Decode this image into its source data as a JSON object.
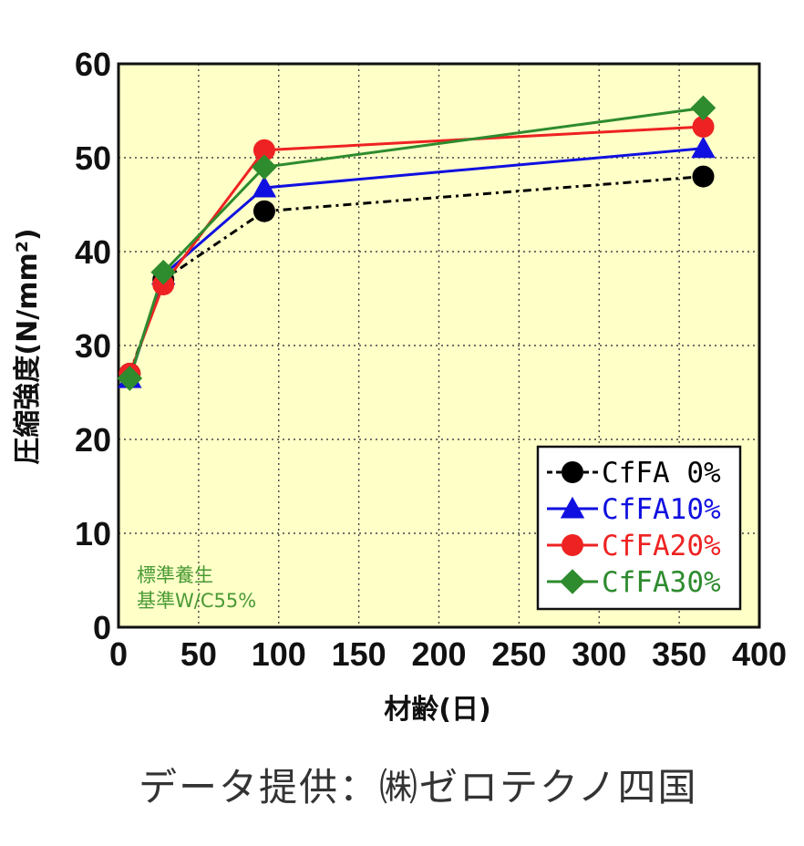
{
  "chart_data": {
    "type": "line",
    "xlabel": "材齢(日)",
    "ylabel": "圧縮強度(N/mm²)",
    "xlim": [
      0,
      400
    ],
    "ylim": [
      0,
      60
    ],
    "xticks": [
      0,
      50,
      100,
      150,
      200,
      250,
      300,
      350,
      400
    ],
    "yticks": [
      0,
      10,
      20,
      30,
      40,
      50,
      60
    ],
    "grid": true,
    "legend_position": "bottom-right",
    "annotations": [
      "標準養生",
      "基準W/C55%"
    ],
    "series": [
      {
        "name": "CfFA 0%",
        "x": [
          7,
          28,
          91,
          365
        ],
        "y": [
          27.0,
          37.0,
          44.3,
          48.0
        ],
        "color": "#000000",
        "marker": "circle",
        "line": "dashed"
      },
      {
        "name": "CfFA10%",
        "x": [
          7,
          28,
          91,
          365
        ],
        "y": [
          26.5,
          37.5,
          46.8,
          51.0
        ],
        "color": "#1010e0",
        "marker": "triangle",
        "line": "solid"
      },
      {
        "name": "CfFA20%",
        "x": [
          7,
          28,
          91,
          365
        ],
        "y": [
          27.0,
          36.5,
          50.8,
          53.3
        ],
        "color": "#ee2222",
        "marker": "circle",
        "line": "solid"
      },
      {
        "name": "CfFA30%",
        "x": [
          7,
          28,
          91,
          365
        ],
        "y": [
          26.5,
          37.8,
          49.0,
          55.3
        ],
        "color": "#2e8b2e",
        "marker": "diamond",
        "line": "solid"
      }
    ]
  },
  "caption": "データ提供：㈱ゼロテクノ四国"
}
